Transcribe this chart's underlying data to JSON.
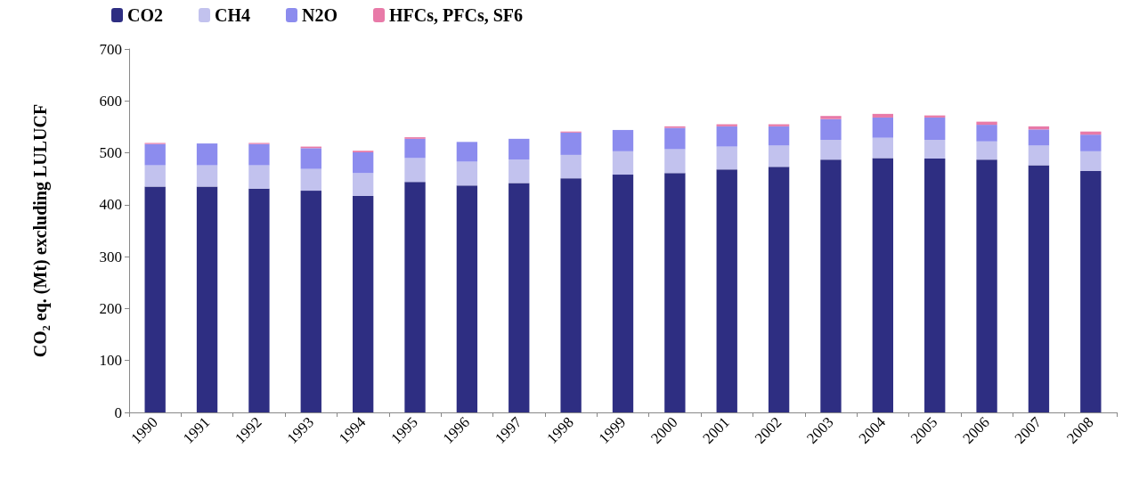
{
  "chart_data": {
    "type": "bar",
    "ylabel": "CO₂ eq. (Mt) excluding LULUCF",
    "stacked": true,
    "legend": "top left",
    "grid": false,
    "categories": [
      "1990",
      "1991",
      "1992",
      "1993",
      "1994",
      "1995",
      "1996",
      "1997",
      "1998",
      "1999",
      "2000",
      "2001",
      "2002",
      "2003",
      "2004",
      "2005",
      "2006",
      "2007",
      "2008"
    ],
    "ylim": [
      0,
      700
    ],
    "yticks": [
      0,
      100,
      200,
      300,
      400,
      500,
      600,
      700
    ],
    "series": [
      {
        "name": "CO2",
        "color": "#2e2e82",
        "values": [
          435,
          435,
          431,
          427,
          417,
          444,
          437,
          442,
          451,
          458,
          461,
          468,
          473,
          487,
          490,
          489,
          487,
          476,
          465
        ]
      },
      {
        "name": "CH4",
        "color": "#c2c2ee",
        "values": [
          41,
          41,
          45,
          42,
          44,
          46,
          46,
          45,
          45,
          45,
          46,
          44,
          41,
          38,
          39,
          36,
          35,
          38,
          38
        ]
      },
      {
        "name": "N2O",
        "color": "#8c8cee",
        "values": [
          41,
          42,
          41,
          40,
          40,
          37,
          38,
          40,
          43,
          41,
          41,
          39,
          37,
          40,
          39,
          43,
          32,
          31,
          32
        ]
      },
      {
        "name": "HFCs, PFCs, SF6",
        "color": "#e87aa8",
        "values": [
          2,
          null,
          2,
          3,
          3,
          3,
          null,
          null,
          2,
          null,
          3,
          4,
          4,
          6,
          7,
          4,
          6,
          6,
          6
        ]
      }
    ]
  }
}
